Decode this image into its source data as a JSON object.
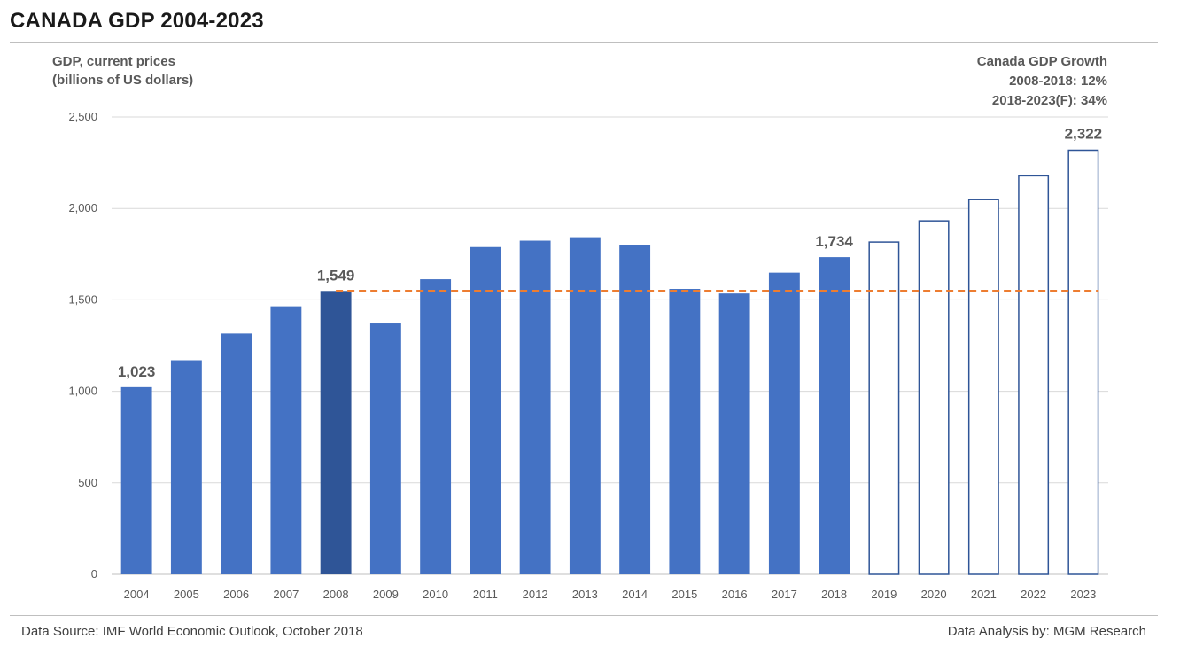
{
  "title": "CANADA GDP 2004-2023",
  "y_axis_label_line1": "GDP, current prices",
  "y_axis_label_line2": "(billions of US dollars)",
  "growth_box": {
    "heading": "Canada GDP Growth",
    "line1": "2008-2018: 12%",
    "line2": "2018-2023(F): 34%"
  },
  "footer": {
    "source": "Data Source: IMF World Economic Outlook, October 2018",
    "analysis": "Data Analysis by: MGM Research"
  },
  "colors": {
    "bar": "#4472c4",
    "highlight_bar": "#2f5597",
    "forecast_outline": "#2f5597",
    "reference_line": "#ed7d31",
    "grid": "#d9d9d9"
  },
  "chart_data": {
    "type": "bar",
    "categories": [
      "2004",
      "2005",
      "2006",
      "2007",
      "2008",
      "2009",
      "2010",
      "2011",
      "2012",
      "2013",
      "2014",
      "2015",
      "2016",
      "2017",
      "2018",
      "2019",
      "2020",
      "2021",
      "2022",
      "2023"
    ],
    "values": [
      1023,
      1170,
      1316,
      1465,
      1549,
      1371,
      1613,
      1789,
      1824,
      1843,
      1802,
      1560,
      1535,
      1649,
      1734,
      1820,
      1936,
      2052,
      2182,
      2322
    ],
    "forecast_from": "2019",
    "highlight": "2008",
    "data_labels": [
      {
        "category": "2004",
        "text": "1,023"
      },
      {
        "category": "2008",
        "text": "1,549"
      },
      {
        "category": "2018",
        "text": "1,734"
      },
      {
        "category": "2023",
        "text": "2,322"
      }
    ],
    "reference_line": {
      "value": 1549,
      "from": "2008",
      "to": "2023",
      "style": "dashed"
    },
    "ylim": [
      0,
      2500
    ],
    "yticks": [
      0,
      500,
      1000,
      1500,
      2000,
      2500
    ],
    "ytick_labels": [
      "0",
      "500",
      "1,000",
      "1,500",
      "2,000",
      "2,500"
    ],
    "grid": true
  }
}
